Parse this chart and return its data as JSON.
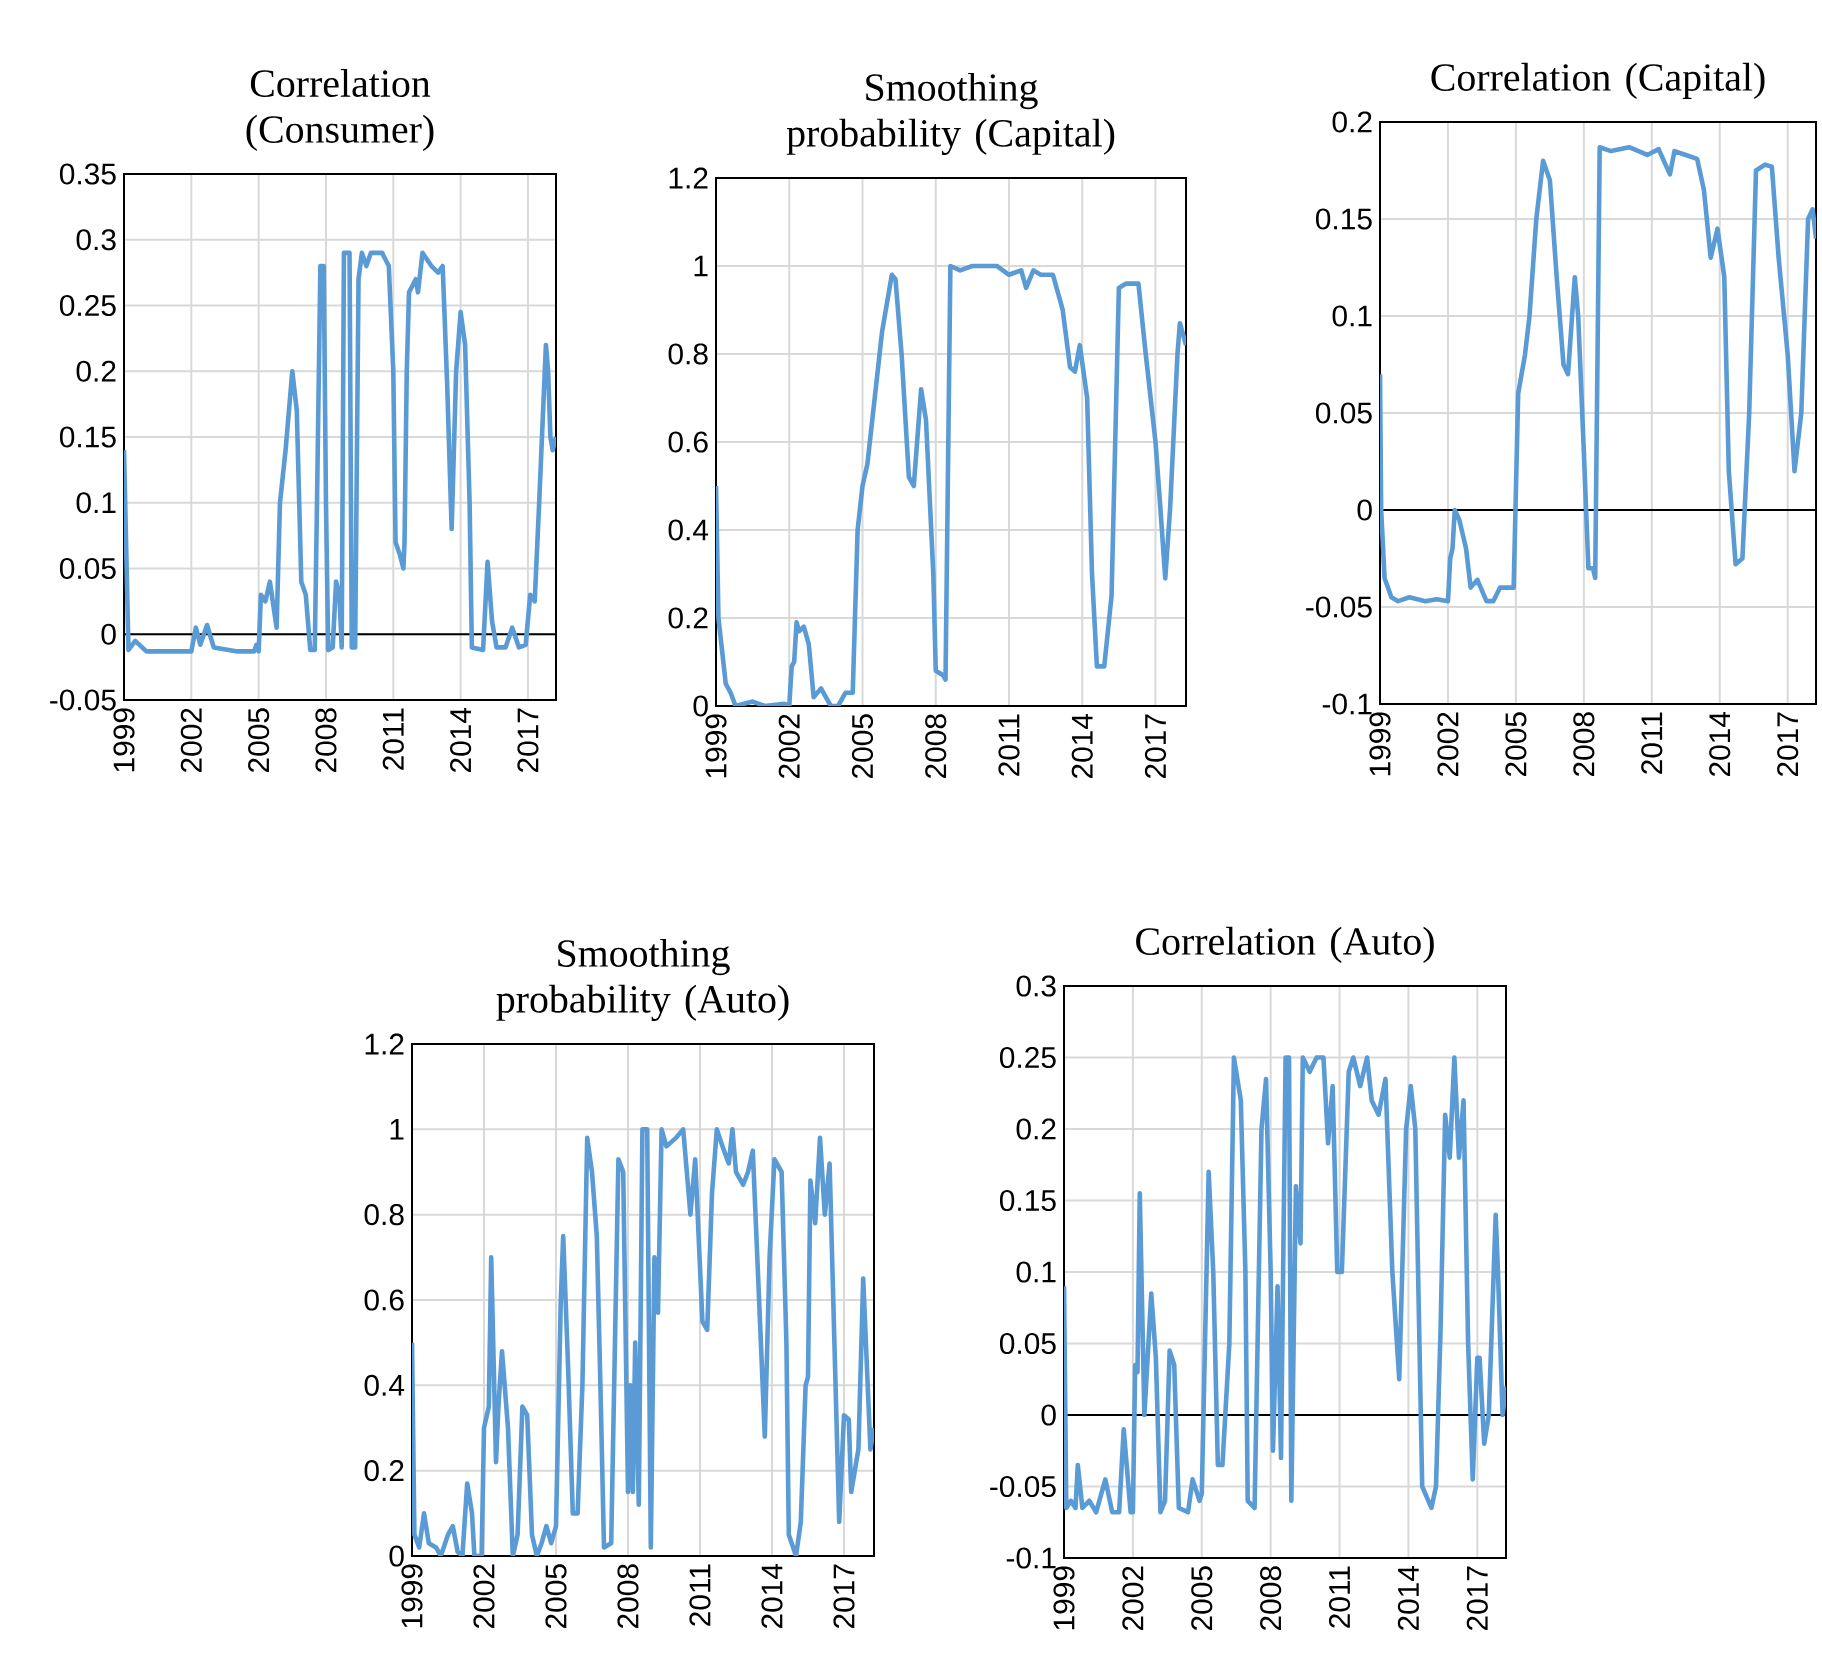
{
  "chart_data": [
    {
      "type": "line",
      "title": "Correlation (Consumer)",
      "color": "#5b9bd5",
      "grid": true,
      "xlim": [
        1999,
        2018.25
      ],
      "ylim": [
        -0.05,
        0.35
      ],
      "xticks": [
        1999,
        2002,
        2005,
        2008,
        2011,
        2014,
        2017
      ],
      "yticks": [
        -0.05,
        0,
        0.05,
        0.1,
        0.15,
        0.2,
        0.25,
        0.3,
        0.35
      ],
      "ref_lines": [
        {
          "axis": "y",
          "value": 0,
          "color": "#000000"
        }
      ],
      "x": [
        1999,
        1999.2,
        1999.5,
        2000,
        2001,
        2002,
        2002.2,
        2002.4,
        2002.7,
        2003.0,
        2004,
        2004.8,
        2004.9,
        2005.0,
        2005.1,
        2005.3,
        2005.5,
        2005.8,
        2005.95,
        2006.2,
        2006.5,
        2006.7,
        2006.9,
        2007.1,
        2007.3,
        2007.5,
        2007.6,
        2007.75,
        2007.9,
        2008.0,
        2008.1,
        2008.3,
        2008.45,
        2008.6,
        2008.7,
        2008.8,
        2009.05,
        2009.15,
        2009.3,
        2009.45,
        2009.6,
        2009.8,
        2010.0,
        2010.5,
        2010.8,
        2011.0,
        2011.1,
        2011.3,
        2011.45,
        2011.5,
        2011.6,
        2011.7,
        2012.0,
        2012.1,
        2012.3,
        2012.7,
        2013.0,
        2013.2,
        2013.4,
        2013.6,
        2013.8,
        2014.0,
        2014.2,
        2014.4,
        2014.5,
        2015.0,
        2015.2,
        2015.4,
        2015.6,
        2016.0,
        2016.3,
        2016.6,
        2016.9,
        2017.1,
        2017.3,
        2017.5,
        2017.8,
        2017.9,
        2018.0,
        2018.1,
        2018.25
      ],
      "values": [
        0.14,
        -0.012,
        -0.005,
        -0.013,
        -0.013,
        -0.013,
        0.005,
        -0.008,
        0.007,
        -0.01,
        -0.013,
        -0.013,
        -0.008,
        -0.013,
        0.03,
        0.025,
        0.04,
        0.005,
        0.1,
        0.14,
        0.2,
        0.17,
        0.04,
        0.03,
        -0.012,
        -0.012,
        0.1,
        0.28,
        0.28,
        0.1,
        -0.012,
        -0.01,
        0.04,
        0.03,
        -0.01,
        0.29,
        0.29,
        -0.01,
        -0.01,
        0.27,
        0.29,
        0.28,
        0.29,
        0.29,
        0.28,
        0.2,
        0.07,
        0.06,
        0.05,
        0.07,
        0.2,
        0.26,
        0.27,
        0.26,
        0.29,
        0.28,
        0.275,
        0.28,
        0.19,
        0.08,
        0.2,
        0.245,
        0.22,
        0.1,
        -0.01,
        -0.012,
        0.055,
        0.01,
        -0.01,
        -0.01,
        0.005,
        -0.01,
        -0.008,
        0.03,
        0.025,
        0.1,
        0.22,
        0.2,
        0.15,
        0.14,
        0.15
      ]
    },
    {
      "type": "line",
      "title": "Smoothing probability (Capital)",
      "color": "#5b9bd5",
      "grid": true,
      "xlim": [
        1999,
        2018.25
      ],
      "ylim": [
        0,
        1.2
      ],
      "xticks": [
        1999,
        2002,
        2005,
        2008,
        2011,
        2014,
        2017
      ],
      "yticks": [
        0,
        0.2,
        0.4,
        0.6,
        0.8,
        1,
        1.2
      ],
      "x": [
        1999,
        1999.1,
        1999.4,
        1999.6,
        1999.8,
        2000.5,
        2001,
        2001.8,
        2002,
        2002.1,
        2002.2,
        2002.3,
        2002.4,
        2002.6,
        2002.8,
        2003.0,
        2003.3,
        2003.7,
        2004.0,
        2004.3,
        2004.6,
        2004.8,
        2005.0,
        2005.2,
        2005.5,
        2005.8,
        2006.2,
        2006.35,
        2006.6,
        2006.9,
        2007.1,
        2007.4,
        2007.6,
        2007.9,
        2008.0,
        2008.3,
        2008.4,
        2008.6,
        2009.0,
        2009.5,
        2010.5,
        2011.0,
        2011.5,
        2011.7,
        2012.0,
        2012.3,
        2012.8,
        2013.2,
        2013.5,
        2013.7,
        2013.9,
        2014.2,
        2014.4,
        2014.6,
        2014.9,
        2015.2,
        2015.5,
        2015.8,
        2016.3,
        2016.6,
        2017.0,
        2017.2,
        2017.4,
        2017.6,
        2017.9,
        2018.0,
        2018.25
      ],
      "values": [
        0.5,
        0.2,
        0.05,
        0.03,
        0.0,
        0.01,
        0.0,
        0.005,
        0.0,
        0.09,
        0.1,
        0.19,
        0.17,
        0.18,
        0.14,
        0.02,
        0.04,
        0.0,
        0.0,
        0.03,
        0.03,
        0.4,
        0.5,
        0.55,
        0.7,
        0.85,
        0.98,
        0.97,
        0.8,
        0.52,
        0.5,
        0.72,
        0.65,
        0.3,
        0.08,
        0.07,
        0.06,
        1.0,
        0.99,
        1.0,
        1.0,
        0.98,
        0.99,
        0.95,
        0.99,
        0.98,
        0.98,
        0.9,
        0.77,
        0.76,
        0.82,
        0.7,
        0.3,
        0.09,
        0.09,
        0.25,
        0.95,
        0.96,
        0.96,
        0.8,
        0.6,
        0.45,
        0.29,
        0.45,
        0.8,
        0.87,
        0.82
      ]
    },
    {
      "type": "line",
      "title": "Correlation (Capital)",
      "color": "#5b9bd5",
      "grid": true,
      "xlim": [
        1999,
        2018.25
      ],
      "ylim": [
        -0.1,
        0.2
      ],
      "xticks": [
        1999,
        2002,
        2005,
        2008,
        2011,
        2014,
        2017
      ],
      "yticks": [
        -0.1,
        -0.05,
        0,
        0.05,
        0.1,
        0.15,
        0.2
      ],
      "ref_lines": [
        {
          "axis": "y",
          "value": 0,
          "color": "#000000"
        }
      ],
      "x": [
        1999,
        1999.05,
        1999.2,
        1999.5,
        1999.8,
        2000.3,
        2001,
        2001.5,
        2002,
        2002.1,
        2002.2,
        2002.3,
        2002.5,
        2002.8,
        2003.0,
        2003.3,
        2003.7,
        2004.0,
        2004.3,
        2004.9,
        2005.1,
        2005.4,
        2005.6,
        2005.9,
        2006.2,
        2006.5,
        2006.8,
        2007.1,
        2007.3,
        2007.6,
        2007.75,
        2008.0,
        2008.2,
        2008.4,
        2008.5,
        2008.7,
        2009.2,
        2010,
        2010.8,
        2011.3,
        2011.8,
        2012.0,
        2012.5,
        2013.0,
        2013.3,
        2013.6,
        2013.9,
        2014.2,
        2014.4,
        2014.7,
        2015.0,
        2015.3,
        2015.6,
        2016.0,
        2016.3,
        2016.6,
        2017.0,
        2017.3,
        2017.6,
        2017.9,
        2018.1,
        2018.25
      ],
      "values": [
        0.07,
        0.0,
        -0.035,
        -0.045,
        -0.047,
        -0.045,
        -0.047,
        -0.046,
        -0.047,
        -0.025,
        -0.02,
        0.0,
        -0.005,
        -0.02,
        -0.04,
        -0.036,
        -0.047,
        -0.047,
        -0.04,
        -0.04,
        0.06,
        0.08,
        0.1,
        0.15,
        0.18,
        0.17,
        0.12,
        0.075,
        0.07,
        0.12,
        0.1,
        0.03,
        -0.03,
        -0.03,
        -0.035,
        0.187,
        0.185,
        0.187,
        0.183,
        0.186,
        0.173,
        0.185,
        0.183,
        0.181,
        0.165,
        0.13,
        0.145,
        0.12,
        0.02,
        -0.028,
        -0.025,
        0.05,
        0.175,
        0.178,
        0.177,
        0.13,
        0.08,
        0.02,
        0.05,
        0.15,
        0.155,
        0.14
      ]
    },
    {
      "type": "line",
      "title": "Smoothing probability (Auto)",
      "color": "#5b9bd5",
      "grid": true,
      "xlim": [
        1999,
        2018.25
      ],
      "ylim": [
        0,
        1.2
      ],
      "xticks": [
        1999,
        2002,
        2005,
        2008,
        2011,
        2014,
        2017
      ],
      "yticks": [
        0,
        0.2,
        0.4,
        0.6,
        0.8,
        1,
        1.2
      ],
      "x": [
        1999,
        1999.1,
        1999.3,
        1999.5,
        1999.7,
        2000,
        2000.2,
        2000.5,
        2000.7,
        2000.9,
        2001.1,
        2001.3,
        2001.5,
        2001.6,
        2001.9,
        2002.0,
        2002.2,
        2002.3,
        2002.5,
        2002.6,
        2002.75,
        2003.0,
        2003.2,
        2003.4,
        2003.6,
        2003.8,
        2004.0,
        2004.2,
        2004.4,
        2004.6,
        2004.8,
        2005.0,
        2005.2,
        2005.3,
        2005.5,
        2005.7,
        2005.9,
        2006.1,
        2006.3,
        2006.5,
        2006.7,
        2006.85,
        2007.0,
        2007.3,
        2007.6,
        2007.8,
        2008.0,
        2008.1,
        2008.2,
        2008.3,
        2008.45,
        2008.6,
        2008.8,
        2008.95,
        2009.1,
        2009.25,
        2009.4,
        2009.6,
        2010.0,
        2010.3,
        2010.6,
        2010.8,
        2011.1,
        2011.3,
        2011.5,
        2011.7,
        2012.0,
        2012.2,
        2012.35,
        2012.5,
        2012.8,
        2013.0,
        2013.2,
        2013.5,
        2013.7,
        2013.9,
        2014.1,
        2014.4,
        2014.6,
        2014.7,
        2015.0,
        2015.2,
        2015.4,
        2015.5,
        2015.6,
        2015.8,
        2016.0,
        2016.2,
        2016.4,
        2016.6,
        2016.8,
        2017.0,
        2017.2,
        2017.3,
        2017.6,
        2017.8,
        2018.1,
        2018.25
      ],
      "values": [
        0.5,
        0.05,
        0.02,
        0.1,
        0.03,
        0.02,
        0.0,
        0.05,
        0.07,
        0.01,
        0.0,
        0.17,
        0.1,
        0.0,
        0.0,
        0.3,
        0.35,
        0.7,
        0.22,
        0.35,
        0.48,
        0.3,
        0.0,
        0.05,
        0.35,
        0.33,
        0.05,
        0.0,
        0.03,
        0.07,
        0.03,
        0.07,
        0.6,
        0.75,
        0.45,
        0.1,
        0.1,
        0.4,
        0.98,
        0.9,
        0.75,
        0.4,
        0.02,
        0.03,
        0.93,
        0.9,
        0.15,
        0.4,
        0.15,
        0.5,
        0.12,
        1.0,
        1.0,
        0.02,
        0.7,
        0.57,
        1.0,
        0.96,
        0.98,
        1.0,
        0.8,
        0.93,
        0.55,
        0.53,
        0.85,
        1.0,
        0.95,
        0.92,
        1.0,
        0.9,
        0.87,
        0.9,
        0.95,
        0.55,
        0.28,
        0.7,
        0.93,
        0.9,
        0.5,
        0.05,
        0.0,
        0.08,
        0.4,
        0.42,
        0.88,
        0.78,
        0.98,
        0.8,
        0.92,
        0.5,
        0.08,
        0.33,
        0.32,
        0.15,
        0.25,
        0.65,
        0.25,
        0.3
      ]
    },
    {
      "type": "line",
      "title": "Correlation (Auto)",
      "color": "#5b9bd5",
      "grid": true,
      "xlim": [
        1999,
        2018.25
      ],
      "ylim": [
        -0.1,
        0.3
      ],
      "xticks": [
        1999,
        2002,
        2005,
        2008,
        2011,
        2014,
        2017
      ],
      "yticks": [
        -0.1,
        -0.05,
        0,
        0.05,
        0.1,
        0.15,
        0.2,
        0.25,
        0.3
      ],
      "ref_lines": [
        {
          "axis": "y",
          "value": 0,
          "color": "#000000"
        }
      ],
      "x": [
        1999,
        1999.1,
        1999.3,
        1999.5,
        1999.6,
        1999.8,
        2000.1,
        2000.4,
        2000.8,
        2001.1,
        2001.4,
        2001.6,
        2001.9,
        2002.0,
        2002.1,
        2002.2,
        2002.3,
        2002.5,
        2002.8,
        2003.0,
        2003.2,
        2003.4,
        2003.6,
        2003.8,
        2004.0,
        2004.4,
        2004.6,
        2004.9,
        2005.0,
        2005.3,
        2005.5,
        2005.7,
        2005.9,
        2006.2,
        2006.4,
        2006.7,
        2006.9,
        2007.0,
        2007.3,
        2007.6,
        2007.8,
        2008.0,
        2008.1,
        2008.3,
        2008.45,
        2008.65,
        2008.8,
        2008.9,
        2009.1,
        2009.3,
        2009.4,
        2009.7,
        2010.0,
        2010.3,
        2010.5,
        2010.7,
        2010.9,
        2011.1,
        2011.4,
        2011.6,
        2011.9,
        2012.2,
        2012.4,
        2012.7,
        2013.0,
        2013.3,
        2013.6,
        2013.9,
        2014.1,
        2014.3,
        2014.6,
        2015.0,
        2015.2,
        2015.4,
        2015.6,
        2015.8,
        2016.0,
        2016.2,
        2016.4,
        2016.6,
        2016.8,
        2017.0,
        2017.1,
        2017.3,
        2017.5,
        2017.8,
        2017.9,
        2018.1,
        2018.25
      ],
      "values": [
        0.09,
        -0.065,
        -0.06,
        -0.065,
        -0.035,
        -0.065,
        -0.06,
        -0.068,
        -0.045,
        -0.068,
        -0.068,
        -0.01,
        -0.068,
        -0.068,
        0.035,
        0.03,
        0.155,
        0.0,
        0.085,
        0.04,
        -0.068,
        -0.06,
        0.045,
        0.035,
        -0.065,
        -0.068,
        -0.045,
        -0.06,
        -0.055,
        0.17,
        0.1,
        -0.035,
        -0.035,
        0.05,
        0.25,
        0.22,
        0.1,
        -0.06,
        -0.065,
        0.2,
        0.235,
        0.1,
        -0.025,
        0.09,
        -0.03,
        0.25,
        0.25,
        -0.06,
        0.16,
        0.12,
        0.25,
        0.24,
        0.25,
        0.25,
        0.19,
        0.23,
        0.1,
        0.1,
        0.24,
        0.25,
        0.23,
        0.25,
        0.22,
        0.21,
        0.235,
        0.1,
        0.025,
        0.2,
        0.23,
        0.2,
        -0.05,
        -0.065,
        -0.05,
        0.06,
        0.21,
        0.18,
        0.25,
        0.18,
        0.22,
        0.05,
        -0.045,
        0.04,
        0.04,
        -0.02,
        0.0,
        0.14,
        0.1,
        0.0,
        0.02
      ]
    }
  ]
}
